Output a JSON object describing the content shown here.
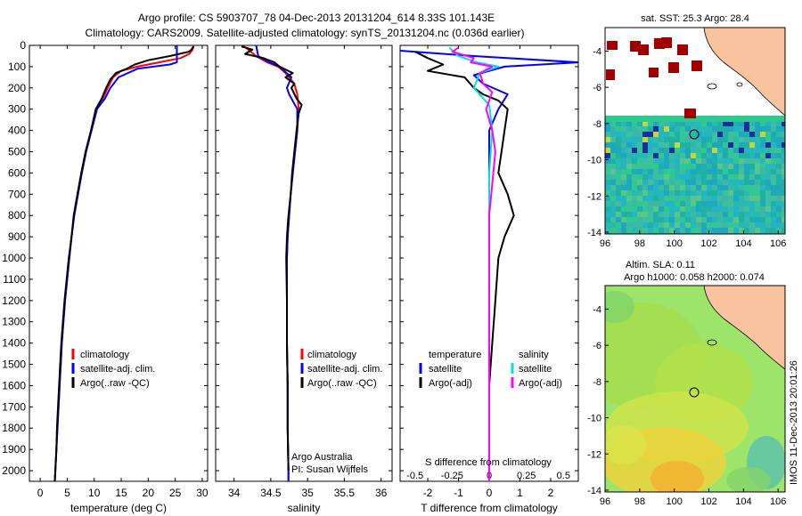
{
  "header": {
    "line1": "Argo profile: CS 5903707_78 04-Dec-2013 20131204_614 8.33S 101.143E",
    "line2": "Climatology: CARS2009. Satellite-adjusted climatology: synTS_20131204.nc (0.036d earlier)"
  },
  "colors": {
    "climatology": "#ff0000",
    "satellite": "#0000ff",
    "argo": "#000000",
    "satellite_salinity": "#00e0e0",
    "argo_adj_salinity": "#ff00ff",
    "land": "#f9c39d"
  },
  "chart_data": [
    {
      "type": "line",
      "id": "temperature",
      "xlabel": "temperature (deg C)",
      "ylabel": "",
      "xlim": [
        -2,
        31
      ],
      "ylim": [
        2050,
        0
      ],
      "xticks": [
        "0",
        "5",
        "10",
        "15",
        "20",
        "25",
        "30"
      ],
      "yticks": [
        "0",
        "100",
        "200",
        "300",
        "400",
        "500",
        "600",
        "700",
        "800",
        "900",
        "1000",
        "1100",
        "1200",
        "1300",
        "1400",
        "1500",
        "1600",
        "1700",
        "1800",
        "1900",
        "2000"
      ],
      "legend": [
        "climatology",
        "satellite-adj. clim.",
        "Argo(..raw -QC)"
      ],
      "series": [
        {
          "name": "climatology",
          "color": "#ff0000",
          "values": [
            [
              28.4,
              0
            ],
            [
              28.2,
              20
            ],
            [
              27.6,
              40
            ],
            [
              26.0,
              60
            ],
            [
              22.0,
              80
            ],
            [
              18.0,
              100
            ],
            [
              15.0,
              120
            ],
            [
              13.5,
              150
            ],
            [
              12.5,
              200
            ],
            [
              11.6,
              250
            ],
            [
              10.5,
              300
            ],
            [
              9.5,
              400
            ],
            [
              8.5,
              500
            ],
            [
              7.7,
              600
            ],
            [
              7.0,
              700
            ],
            [
              6.3,
              800
            ],
            [
              5.8,
              900
            ],
            [
              5.4,
              1000
            ],
            [
              5.0,
              1100
            ],
            [
              4.6,
              1200
            ],
            [
              4.3,
              1300
            ],
            [
              4.0,
              1400
            ],
            [
              3.8,
              1500
            ],
            [
              3.6,
              1600
            ],
            [
              3.4,
              1700
            ],
            [
              3.2,
              1800
            ],
            [
              3.0,
              1900
            ],
            [
              2.8,
              2000
            ],
            [
              2.7,
              2050
            ]
          ]
        },
        {
          "name": "satellite-adj. clim.",
          "color": "#0000ff",
          "values": [
            [
              25.3,
              0
            ],
            [
              25.3,
              40
            ],
            [
              25.3,
              80
            ],
            [
              24.0,
              90
            ],
            [
              18.0,
              110
            ],
            [
              14.5,
              150
            ],
            [
              13.0,
              200
            ],
            [
              12.0,
              250
            ],
            [
              10.5,
              300
            ],
            [
              9.5,
              400
            ],
            [
              8.5,
              500
            ],
            [
              7.7,
              600
            ],
            [
              7.0,
              700
            ],
            [
              6.3,
              800
            ],
            [
              5.8,
              900
            ],
            [
              5.4,
              1000
            ],
            [
              5.0,
              1100
            ],
            [
              4.6,
              1200
            ],
            [
              4.3,
              1300
            ],
            [
              4.0,
              1400
            ],
            [
              3.8,
              1500
            ],
            [
              3.6,
              1600
            ],
            [
              3.4,
              1700
            ],
            [
              3.2,
              1800
            ],
            [
              3.0,
              1900
            ],
            [
              2.8,
              2000
            ],
            [
              2.7,
              2050
            ]
          ]
        },
        {
          "name": "Argo(..raw -QC)",
          "color": "#000000",
          "values": [
            [
              28.4,
              5
            ],
            [
              28.0,
              20
            ],
            [
              27.5,
              30
            ],
            [
              24.0,
              50
            ],
            [
              20.0,
              70
            ],
            [
              17.5,
              90
            ],
            [
              16.0,
              110
            ],
            [
              14.0,
              130
            ],
            [
              13.0,
              160
            ],
            [
              12.2,
              200
            ],
            [
              11.4,
              250
            ],
            [
              10.3,
              300
            ],
            [
              9.4,
              400
            ],
            [
              8.4,
              500
            ],
            [
              7.6,
              600
            ],
            [
              6.9,
              700
            ],
            [
              6.2,
              800
            ],
            [
              5.8,
              900
            ],
            [
              5.3,
              1000
            ],
            [
              4.9,
              1100
            ],
            [
              4.5,
              1200
            ],
            [
              4.2,
              1300
            ],
            [
              3.9,
              1400
            ],
            [
              3.7,
              1500
            ],
            [
              3.5,
              1600
            ],
            [
              3.3,
              1700
            ],
            [
              3.1,
              1800
            ],
            [
              3.0,
              1900
            ],
            [
              2.8,
              2000
            ],
            [
              2.7,
              2050
            ]
          ]
        }
      ]
    },
    {
      "type": "line",
      "id": "salinity",
      "xlabel": "salinity",
      "ylabel": "",
      "xlim": [
        33.75,
        36.15
      ],
      "ylim": [
        2050,
        0
      ],
      "xticks": [
        "34",
        "34.5",
        "35",
        "35.5",
        "36"
      ],
      "legend": [
        "climatology",
        "satellite-adj. clim.",
        "Argo(..raw -QC)"
      ],
      "annotation": [
        "Argo Australia",
        "PI: Susan Wijffels"
      ],
      "series": [
        {
          "name": "climatology",
          "color": "#ff0000",
          "values": [
            [
              34.12,
              0
            ],
            [
              34.3,
              50
            ],
            [
              34.45,
              80
            ],
            [
              34.6,
              100
            ],
            [
              34.7,
              130
            ],
            [
              34.82,
              180
            ],
            [
              34.86,
              230
            ],
            [
              34.88,
              300
            ],
            [
              34.86,
              400
            ],
            [
              34.83,
              500
            ],
            [
              34.8,
              600
            ],
            [
              34.77,
              700
            ],
            [
              34.75,
              800
            ],
            [
              34.73,
              900
            ],
            [
              34.72,
              1000
            ],
            [
              34.72,
              1200
            ],
            [
              34.72,
              1400
            ],
            [
              34.73,
              1600
            ],
            [
              34.73,
              1800
            ],
            [
              34.74,
              2000
            ],
            [
              34.74,
              2050
            ]
          ]
        },
        {
          "name": "satellite-adj. clim.",
          "color": "#0000ff",
          "values": [
            [
              34.3,
              0
            ],
            [
              34.33,
              50
            ],
            [
              34.48,
              80
            ],
            [
              34.62,
              100
            ],
            [
              34.78,
              150
            ],
            [
              34.72,
              200
            ],
            [
              34.75,
              230
            ],
            [
              34.86,
              300
            ],
            [
              34.86,
              400
            ],
            [
              34.83,
              500
            ],
            [
              34.8,
              600
            ],
            [
              34.77,
              700
            ],
            [
              34.75,
              800
            ],
            [
              34.73,
              900
            ],
            [
              34.72,
              1000
            ],
            [
              34.72,
              1200
            ],
            [
              34.72,
              1400
            ],
            [
              34.73,
              1600
            ],
            [
              34.73,
              1800
            ],
            [
              34.74,
              2000
            ],
            [
              34.74,
              2050
            ]
          ]
        },
        {
          "name": "Argo(..raw -QC)",
          "color": "#000000",
          "values": [
            [
              34.1,
              5
            ],
            [
              34.25,
              20
            ],
            [
              34.15,
              40
            ],
            [
              34.4,
              60
            ],
            [
              34.55,
              80
            ],
            [
              34.62,
              100
            ],
            [
              34.8,
              130
            ],
            [
              34.7,
              150
            ],
            [
              34.82,
              180
            ],
            [
              34.78,
              200
            ],
            [
              34.85,
              250
            ],
            [
              34.92,
              280
            ],
            [
              34.88,
              320
            ],
            [
              34.85,
              400
            ],
            [
              34.82,
              500
            ],
            [
              34.79,
              600
            ],
            [
              34.77,
              700
            ],
            [
              34.74,
              800
            ],
            [
              34.72,
              900
            ],
            [
              34.71,
              1000
            ],
            [
              34.72,
              1200
            ],
            [
              34.72,
              1400
            ],
            [
              34.73,
              1600
            ],
            [
              34.73,
              1800
            ],
            [
              34.74,
              2000
            ]
          ]
        }
      ]
    },
    {
      "type": "line",
      "id": "difference",
      "xlabel": "T difference from climatology",
      "xlabel_top": "S difference from climatology",
      "xlim": [
        -2.9,
        2.9
      ],
      "ylim": [
        2050,
        0
      ],
      "xticks": [
        "-2",
        "-1",
        "0",
        "1",
        "2"
      ],
      "xticks_salinity": [
        "-0.5",
        "-0.25",
        "0",
        "0.25",
        "0.5"
      ],
      "legend_headers": [
        "temperature",
        "salinity"
      ],
      "legend": [
        "satellite",
        "Argo(-adj)",
        "satellite",
        "Argo(-adj)"
      ],
      "series": [
        {
          "name": "satellite",
          "color": "#0000ff",
          "values": [
            [
              -2.9,
              25
            ],
            [
              -0.5,
              50
            ],
            [
              2.9,
              80
            ],
            [
              0.5,
              100
            ],
            [
              -0.5,
              140
            ],
            [
              -0.2,
              180
            ],
            [
              0.6,
              230
            ],
            [
              0.3,
              300
            ],
            [
              0.0,
              400
            ],
            [
              0.0,
              600
            ],
            [
              0.0,
              800
            ],
            [
              0.0,
              1000
            ],
            [
              0.0,
              1400
            ],
            [
              0.0,
              2050
            ]
          ]
        },
        {
          "name": "Argo(-adj)",
          "color": "#000000",
          "values": [
            [
              -2.4,
              30
            ],
            [
              -2.0,
              60
            ],
            [
              -1.5,
              90
            ],
            [
              -2.0,
              120
            ],
            [
              -0.8,
              150
            ],
            [
              -0.5,
              200
            ],
            [
              -0.2,
              230
            ],
            [
              0.3,
              260
            ],
            [
              0.6,
              300
            ],
            [
              0.5,
              400
            ],
            [
              0.4,
              500
            ],
            [
              0.3,
              600
            ],
            [
              0.6,
              700
            ],
            [
              0.8,
              800
            ],
            [
              0.5,
              900
            ],
            [
              0.3,
              1000
            ],
            [
              0.2,
              1200
            ],
            [
              0.1,
              1400
            ],
            [
              0.0,
              1600
            ],
            [
              0.0,
              2050
            ]
          ]
        },
        {
          "name": "satellite",
          "color": "#00e0e0",
          "values": [
            [
              -1.3,
              10
            ],
            [
              -1.0,
              50
            ],
            [
              -0.4,
              80
            ],
            [
              0.3,
              100
            ],
            [
              -0.3,
              130
            ],
            [
              -0.5,
              200
            ],
            [
              0.0,
              280
            ],
            [
              0.1,
              400
            ],
            [
              0.0,
              600
            ],
            [
              0.0,
              800
            ],
            [
              0.0,
              1200
            ],
            [
              0.0,
              1600
            ],
            [
              0.0,
              2050
            ]
          ]
        },
        {
          "name": "Argo(-adj)",
          "color": "#ff00ff",
          "values": [
            [
              -1.0,
              10
            ],
            [
              -1.2,
              30
            ],
            [
              -0.5,
              60
            ],
            [
              -0.6,
              80
            ],
            [
              0.1,
              100
            ],
            [
              -0.3,
              130
            ],
            [
              -0.2,
              180
            ],
            [
              0.1,
              220
            ],
            [
              -0.1,
              300
            ],
            [
              0.1,
              400
            ],
            [
              0.2,
              500
            ],
            [
              0.0,
              800
            ],
            [
              0.0,
              1200
            ],
            [
              0.0,
              2050
            ]
          ]
        }
      ]
    }
  ],
  "map_sst": {
    "title": "sat. SST: 25.3 Argo: 28.4",
    "xticks": [
      "96",
      "98",
      "100",
      "102",
      "104",
      "106"
    ],
    "yticks": [
      "-4",
      "-6",
      "-8",
      "-10",
      "-12",
      "-14"
    ]
  },
  "map_sla": {
    "title_line1": "Altim. SLA: 0.11",
    "title_line2": "Argo h1000: 0.058 h2000: 0.074",
    "xticks": [
      "96",
      "98",
      "100",
      "102",
      "104",
      "106"
    ],
    "yticks": [
      "-4",
      "-6",
      "-8",
      "-10",
      "-12",
      "-14"
    ]
  },
  "footer": {
    "stamp": "IMOS 11-Dec-2013 20:01:26"
  }
}
